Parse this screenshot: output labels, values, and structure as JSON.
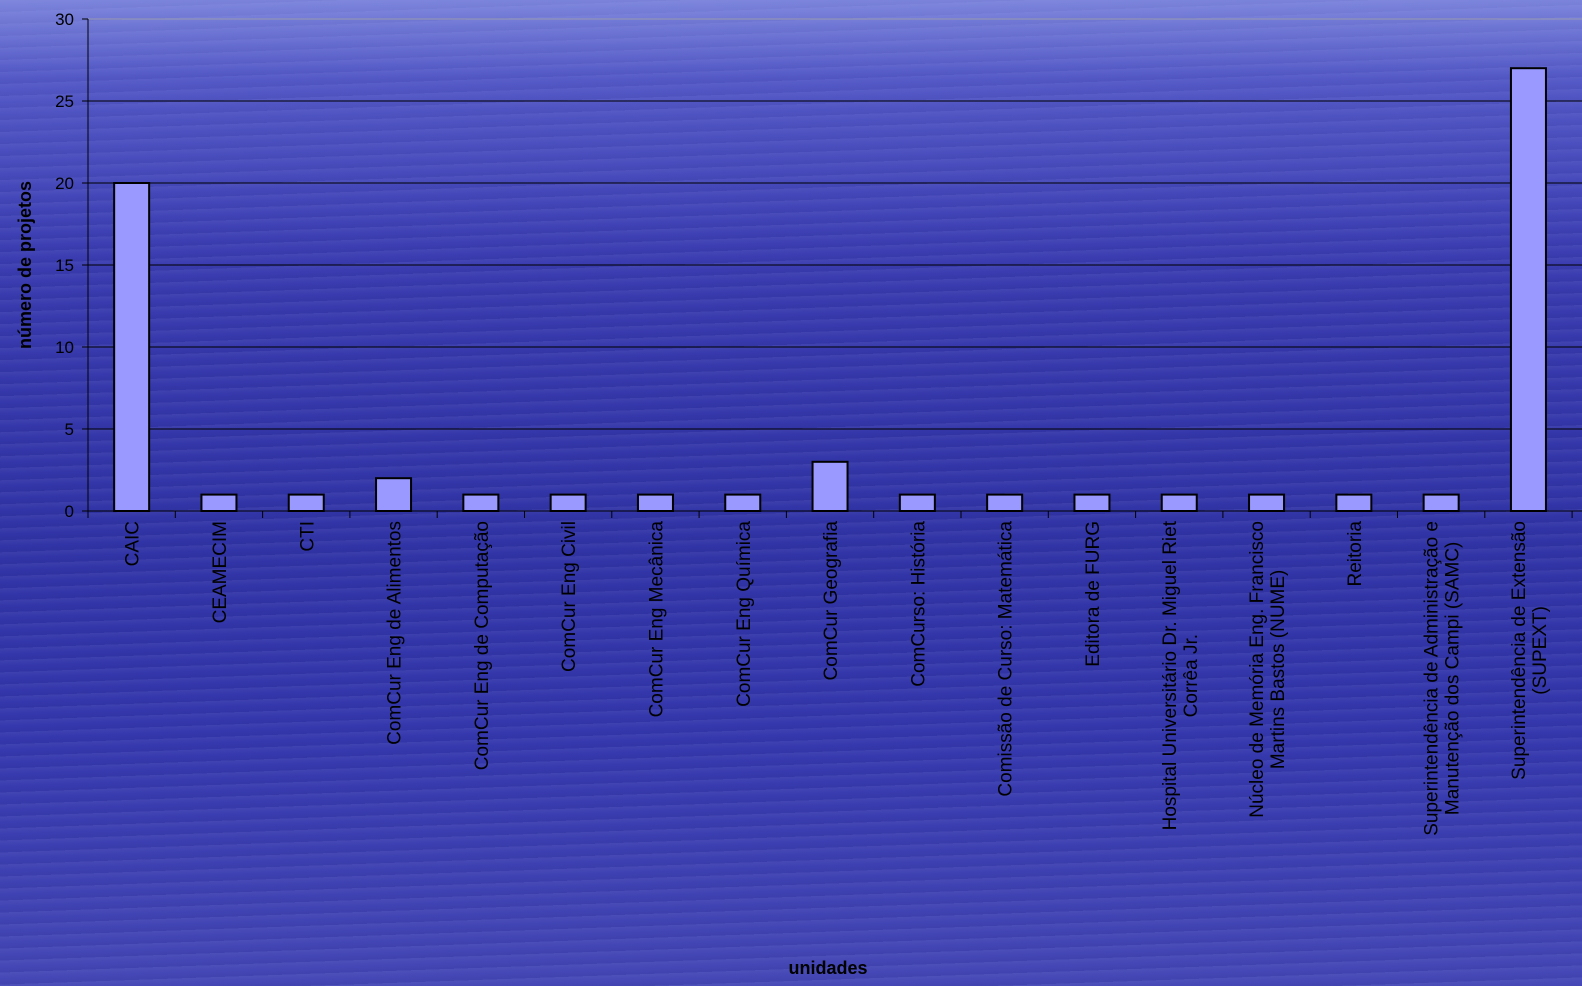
{
  "chart_data": {
    "type": "bar",
    "title": "",
    "xlabel": "unidades",
    "ylabel": "número de projetos",
    "ylim": [
      0,
      30
    ],
    "yticks": [
      0,
      5,
      10,
      15,
      20,
      25,
      30
    ],
    "grid": true,
    "legend": "none",
    "bar_color": "#9999ff",
    "categories": [
      [
        "CAIC"
      ],
      [
        "CEAMECIM"
      ],
      [
        "CTI"
      ],
      [
        "ComCur Eng de Alimentos"
      ],
      [
        "ComCur Eng de Computação"
      ],
      [
        "ComCur Eng Civil"
      ],
      [
        "ComCur Eng Mecânica"
      ],
      [
        "ComCur Eng Química"
      ],
      [
        "ComCur Geografia"
      ],
      [
        "ComCurso: História"
      ],
      [
        "Comissão de Curso: Matemática"
      ],
      [
        "Editora de FURG"
      ],
      [
        "Hospital Universitário Dr. Miguel Riet",
        "Corrêa Jr."
      ],
      [
        "Núcleo de Memória Eng. Francisco",
        "Martins Bastos (NUME)"
      ],
      [
        "Reitoria"
      ],
      [
        "Superintendência de Administração e",
        "Manutenção dos Campi (SAMC)"
      ],
      [
        "Superintendência de Extensão",
        "(SUPEXT)"
      ]
    ],
    "values": [
      20,
      1,
      1,
      2,
      1,
      1,
      1,
      1,
      3,
      1,
      1,
      1,
      1,
      1,
      1,
      1,
      27
    ]
  }
}
